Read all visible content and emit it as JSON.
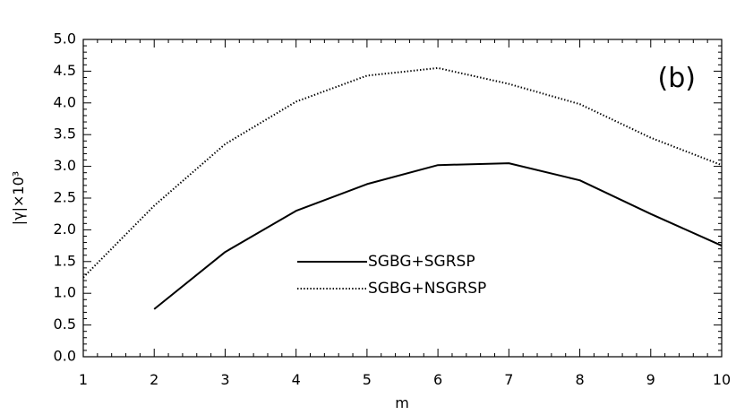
{
  "chart_data": {
    "type": "line",
    "panel_label": "(b)",
    "xlabel": "m",
    "ylabel": "|γ|×10³",
    "xlim": [
      1,
      10
    ],
    "ylim": [
      0.0,
      5.0
    ],
    "x_ticks": [
      "1",
      "2",
      "3",
      "4",
      "5",
      "6",
      "7",
      "8",
      "9",
      "10"
    ],
    "y_ticks": [
      "0.0",
      "0.5",
      "1.0",
      "1.5",
      "2.0",
      "2.5",
      "3.0",
      "3.5",
      "4.0",
      "4.5",
      "5.0"
    ],
    "legend_position": "center",
    "series": [
      {
        "name": "SGBG+SGRSP",
        "style": "solid",
        "x": [
          2,
          3,
          4,
          5,
          6,
          7,
          8,
          9,
          10
        ],
        "y": [
          0.75,
          1.65,
          2.3,
          2.72,
          3.02,
          3.05,
          2.78,
          2.25,
          1.75
        ]
      },
      {
        "name": "SGBG+NSGRSP",
        "style": "dotted",
        "x": [
          1,
          2,
          3,
          4,
          5,
          6,
          7,
          8,
          9,
          10
        ],
        "y": [
          1.25,
          2.38,
          3.35,
          4.02,
          4.43,
          4.55,
          4.3,
          3.98,
          3.45,
          3.02
        ]
      }
    ]
  }
}
